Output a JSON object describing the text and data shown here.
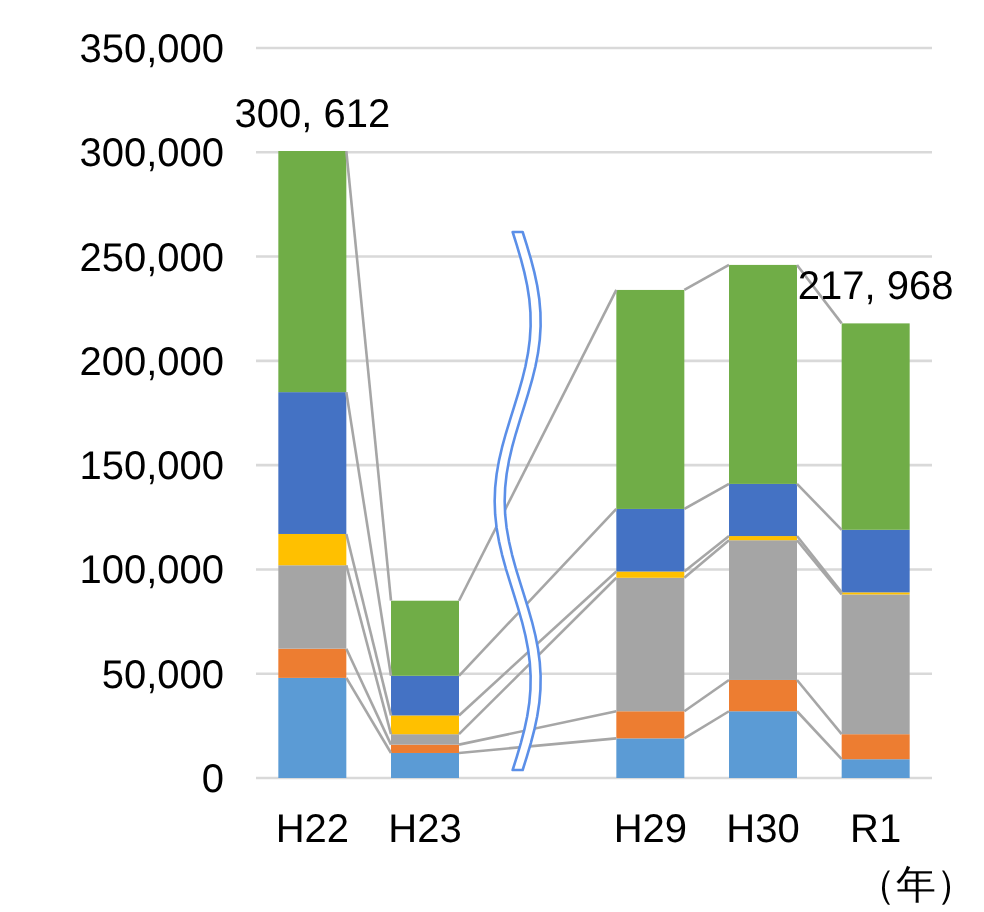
{
  "chart_data": {
    "type": "bar",
    "stacked": true,
    "categories": [
      "H22",
      "H23",
      null,
      "H29",
      "H30",
      "R1"
    ],
    "series": [
      {
        "color": "#5b9bd5",
        "values": [
          48000,
          12000,
          null,
          19000,
          32000,
          9000
        ]
      },
      {
        "color": "#ed7d31",
        "values": [
          14000,
          4000,
          null,
          13000,
          15000,
          12000
        ]
      },
      {
        "color": "#a5a5a5",
        "values": [
          40000,
          5000,
          null,
          64000,
          67000,
          67000
        ]
      },
      {
        "color": "#ffc000",
        "values": [
          15000,
          9000,
          null,
          3000,
          2000,
          1000
        ]
      },
      {
        "color": "#4472c4",
        "values": [
          68000,
          19000,
          null,
          30000,
          25000,
          30000
        ]
      },
      {
        "color": "#70ad47",
        "values": [
          115612,
          36000,
          null,
          105000,
          105000,
          98968
        ]
      }
    ],
    "totals": [
      "300, 612",
      null,
      null,
      null,
      null,
      "217, 968"
    ],
    "xlabel": "（年）",
    "ylim": [
      0,
      350000
    ],
    "yticks": [
      {
        "value": 0,
        "label": "0"
      },
      {
        "value": 50000,
        "label": "50,000"
      },
      {
        "value": 100000,
        "label": "100,000"
      },
      {
        "value": 150000,
        "label": "150,000"
      },
      {
        "value": 200000,
        "label": "200,000"
      },
      {
        "value": 250000,
        "label": "250,000"
      },
      {
        "value": 300000,
        "label": "300,000"
      },
      {
        "value": 350000,
        "label": "350,000"
      }
    ],
    "grid": "y"
  }
}
